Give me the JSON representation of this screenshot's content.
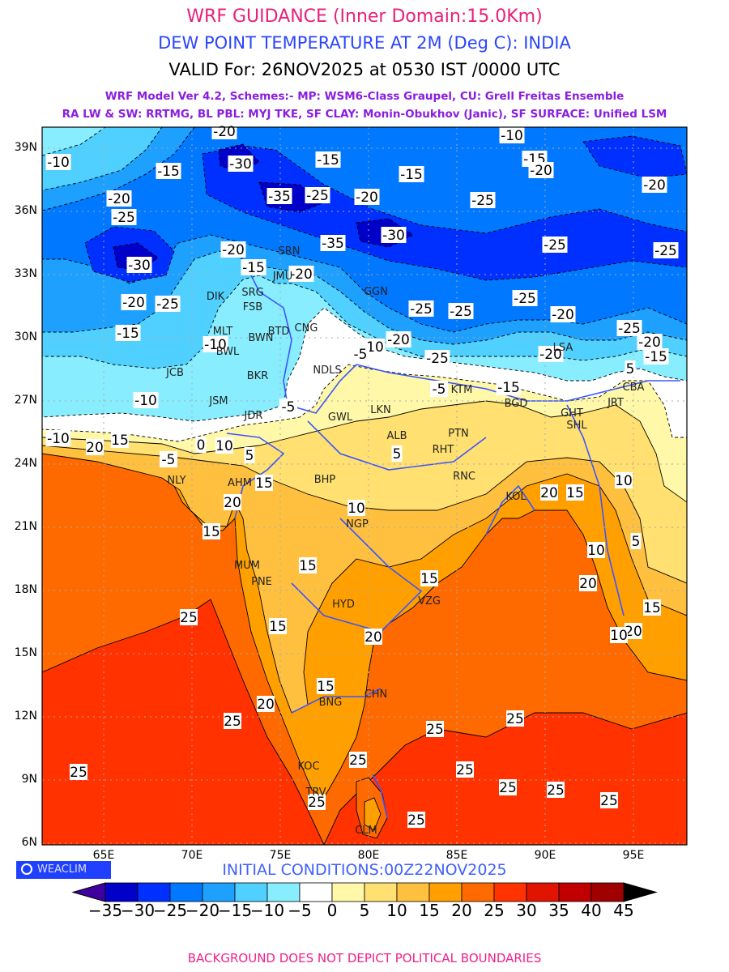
{
  "header": {
    "title": "WRF GUIDANCE (Inner Domain:15.0Km)",
    "subtitle": "DEW POINT TEMPERATURE AT 2M (Deg C): INDIA",
    "valid": "VALID For: 26NOV2025 at 0530 IST /0000 UTC",
    "model_line1": "WRF Model Ver 4.2, Schemes:- MP: WSM6-Class Graupel, CU: Grell Freitas Ensemble",
    "model_line2": "RA LW & SW: RRTMG, BL PBL: MYJ TKE, SF CLAY: Monin-Obukhov (Janic), SF SURFACE: Unified LSM"
  },
  "axes": {
    "lat_labels": [
      "39N",
      "36N",
      "33N",
      "30N",
      "27N",
      "24N",
      "21N",
      "18N",
      "15N",
      "12N",
      "9N",
      "6N"
    ],
    "lon_labels": [
      "65E",
      "70E",
      "75E",
      "80E",
      "85E",
      "90E",
      "95E"
    ]
  },
  "contour_labels": [
    "-20",
    "-10",
    "-10",
    "-30",
    "-15",
    "-15",
    "-15",
    "-15",
    "-20",
    "-20",
    "-20",
    "-20",
    "-35",
    "-25",
    "-25",
    "-25",
    "-30",
    "-35",
    "-25",
    "-25",
    "-30",
    "-15",
    "-20",
    "-20",
    "-25",
    "-25",
    "-25",
    "-20",
    "-25",
    "-20",
    "-25",
    "-20",
    "-15",
    "-20",
    "-25",
    "-20",
    "-15",
    "-10",
    "-10",
    "-5",
    "-5",
    "-5",
    "-15",
    "-10",
    "-10",
    "20",
    "15",
    "5",
    "-5",
    "0",
    "10",
    "5",
    "10",
    "5",
    "15",
    "20",
    "15",
    "20",
    "15",
    "10",
    "10",
    "5",
    "15",
    "15",
    "20",
    "15",
    "20",
    "15",
    "20",
    "25",
    "15",
    "20",
    "10",
    "25",
    "25",
    "25",
    "25",
    "25",
    "25",
    "25",
    "25",
    "25",
    "25",
    "25"
  ],
  "cities": [
    "SRN",
    "JMU",
    "SRG",
    "FSB",
    "DIK",
    "MLT",
    "BWL",
    "BWN",
    "BTD",
    "CNG",
    "GGN",
    "NDLS",
    "JCB",
    "BKR",
    "JSM",
    "JDR",
    "GWL",
    "LKN",
    "ALB",
    "PTN",
    "KTM",
    "BGD",
    "GHT",
    "SHL",
    "JRT",
    "CBA",
    "LSA",
    "RHT",
    "RNC",
    "KOL",
    "BHP",
    "AHM",
    "NLY",
    "NGP",
    "MUM",
    "PNE",
    "HYD",
    "VZG",
    "CHN",
    "BNG",
    "KOC",
    "TRV",
    "CLM"
  ],
  "legend": {
    "badge": "WEACLIM",
    "initial_conditions": "INITIAL CONDITIONS:00Z22NOV2025",
    "levels": [
      "-35",
      "-30",
      "-25",
      "-20",
      "-15",
      "-10",
      "-5",
      "0",
      "5",
      "10",
      "15",
      "20",
      "25",
      "30",
      "35",
      "40",
      "45"
    ],
    "colors": [
      "#0000c8",
      "#0030ff",
      "#0078ff",
      "#1ea0ff",
      "#50d0ff",
      "#88eeff",
      "#ffffff",
      "#fff8a8",
      "#ffe070",
      "#ffc040",
      "#ffa000",
      "#ff6a00",
      "#ff3200",
      "#e01400",
      "#c00000",
      "#a00000"
    ],
    "under_color": "#4000a0",
    "over_color": "#000000"
  },
  "footer": "BACKGROUND DOES NOT DEPICT POLITICAL BOUNDARIES"
}
